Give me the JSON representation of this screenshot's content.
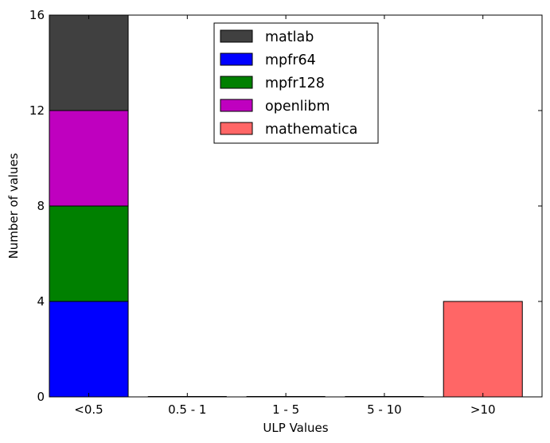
{
  "chart_data": {
    "type": "bar",
    "stacked": true,
    "title": "",
    "xlabel": "ULP Values",
    "ylabel": "Number of values",
    "categories": [
      "<0.5",
      "0.5 - 1",
      "1 - 5",
      "5 - 10",
      ">10"
    ],
    "ylim": [
      0,
      16
    ],
    "yticks": [
      0,
      4,
      8,
      12,
      16
    ],
    "grid": false,
    "legend_position": "top-center",
    "series": [
      {
        "name": "mpfr64",
        "color": "#0000ff",
        "values": [
          4,
          0,
          0,
          0,
          0
        ]
      },
      {
        "name": "mpfr128",
        "color": "#008000",
        "values": [
          4,
          0,
          0,
          0,
          0
        ]
      },
      {
        "name": "openlibm",
        "color": "#bf00bf",
        "values": [
          4,
          0,
          0,
          0,
          0
        ]
      },
      {
        "name": "matlab",
        "color": "#404040",
        "values": [
          4,
          0,
          0,
          0,
          0
        ]
      },
      {
        "name": "mathematica",
        "color": "#ff6666",
        "values": [
          0,
          0,
          0,
          0,
          4
        ]
      }
    ],
    "legend_order": [
      "matlab",
      "mpfr64",
      "mpfr128",
      "openlibm",
      "mathematica"
    ]
  }
}
